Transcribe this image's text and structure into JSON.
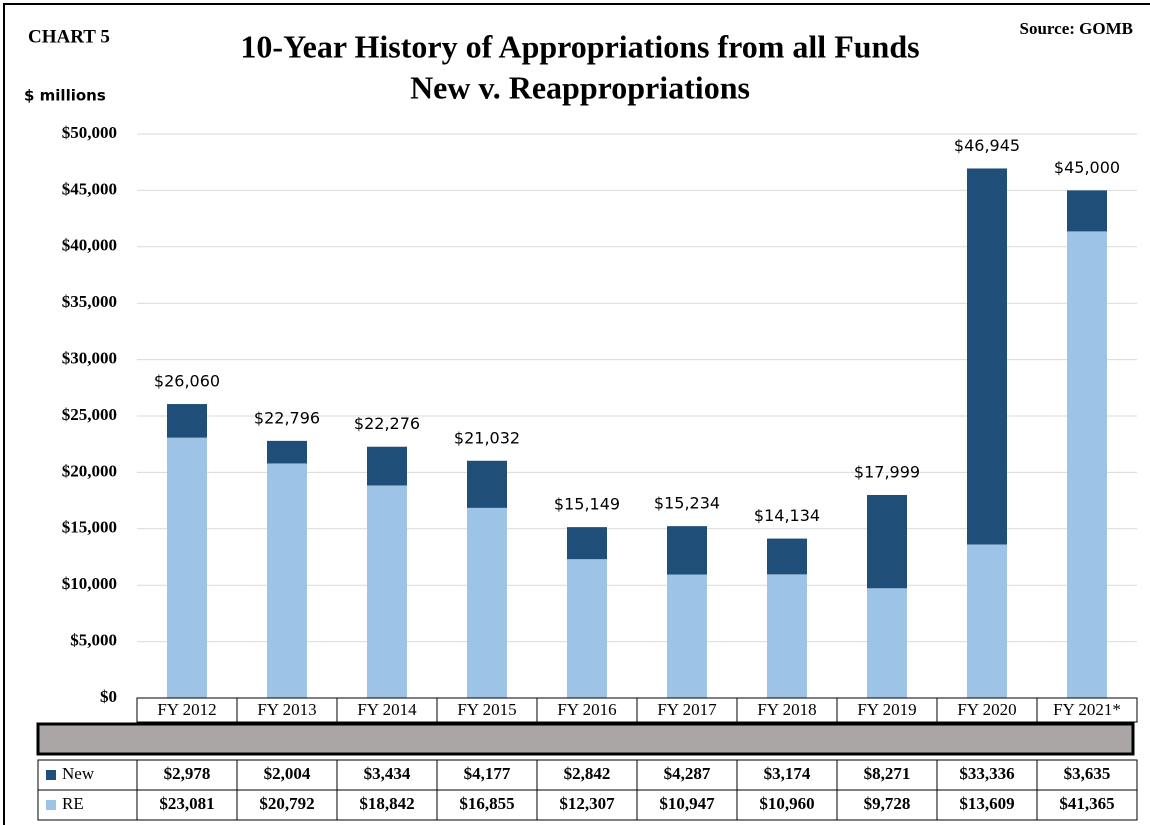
{
  "chart_data": {
    "type": "stacked_bar",
    "label": "CHART 5",
    "title": "10-Year History of Appropriations from all Funds",
    "subtitle": "New v. Reappropriations",
    "source": "Source: GOMB",
    "y_label": "$ millions",
    "categories": [
      "FY 2012",
      "FY 2013",
      "FY 2014",
      "FY 2015",
      "FY 2016",
      "FY 2017",
      "FY 2018",
      "FY 2019",
      "FY 2020",
      "FY 2021*"
    ],
    "series": [
      {
        "name": "New",
        "color": "#1f4e79",
        "values": [
          2978,
          2004,
          3434,
          4177,
          2842,
          4287,
          3174,
          8271,
          33336,
          3635
        ],
        "value_labels": [
          "$2,978",
          "$2,004",
          "$3,434",
          "$4,177",
          "$2,842",
          "$4,287",
          "$3,174",
          "$8,271",
          "$33,336",
          "$3,635"
        ]
      },
      {
        "name": "RE",
        "color": "#9dc3e6",
        "values": [
          23081,
          20792,
          18842,
          16855,
          12307,
          10947,
          10960,
          9728,
          13609,
          41365
        ],
        "value_labels": [
          "$23,081",
          "$20,792",
          "$18,842",
          "$16,855",
          "$12,307",
          "$10,947",
          "$10,960",
          "$9,728",
          "$13,609",
          "$41,365"
        ]
      }
    ],
    "totals": [
      26060,
      22796,
      22276,
      21032,
      15149,
      15234,
      14134,
      17999,
      46945,
      45000
    ],
    "total_labels": [
      "$26,060",
      "$22,796",
      "$22,276",
      "$21,032",
      "$15,149",
      "$15,234",
      "$14,134",
      "$17,999",
      "$46,945",
      "$45,000"
    ],
    "ylim": [
      0,
      50000
    ],
    "yticks": [
      {
        "value": 0,
        "label": "$0"
      },
      {
        "value": 5000,
        "label": "$5,000"
      },
      {
        "value": 10000,
        "label": "$10,000"
      },
      {
        "value": 15000,
        "label": "$15,000"
      },
      {
        "value": 20000,
        "label": "$20,000"
      },
      {
        "value": 25000,
        "label": "$25,000"
      },
      {
        "value": 30000,
        "label": "$30,000"
      },
      {
        "value": 35000,
        "label": "$35,000"
      },
      {
        "value": 40000,
        "label": "$40,000"
      },
      {
        "value": 45000,
        "label": "$45,000"
      },
      {
        "value": 50000,
        "label": "$50,000"
      }
    ],
    "grid": true
  }
}
